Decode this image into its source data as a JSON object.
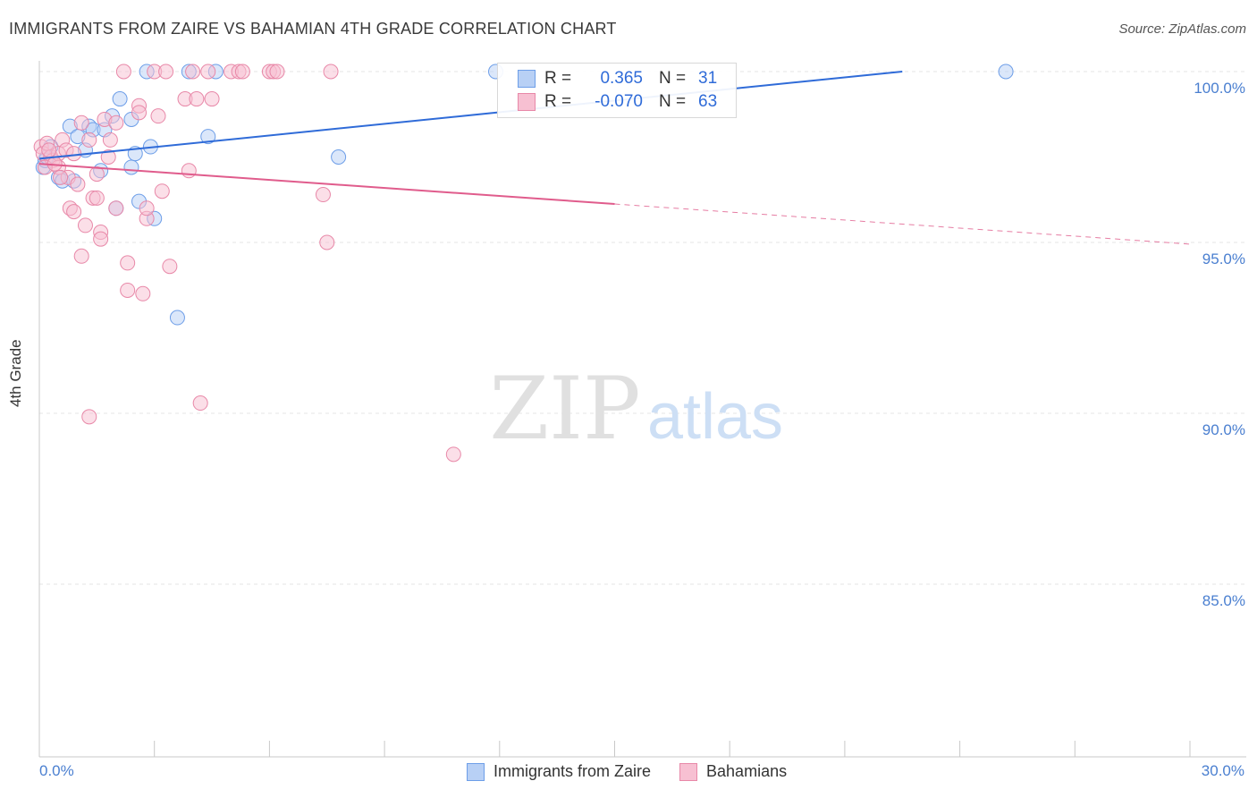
{
  "title": "IMMIGRANTS FROM ZAIRE VS BAHAMIAN 4TH GRADE CORRELATION CHART",
  "source": "Source: ZipAtlas.com",
  "watermark": {
    "zip": "ZIP",
    "atlas": "atlas"
  },
  "colors": {
    "blue": "#6d9ee8",
    "blue_fill": "#b8d0f5",
    "blue_line": "#2f6bd8",
    "pink": "#e888a8",
    "pink_fill": "#f7c0d2",
    "pink_line": "#e05c8c",
    "tick_text": "#4a7fd0",
    "grid": "#e5e5e5"
  },
  "legend": {
    "rows": [
      {
        "r_label": "R =",
        "r_value": "0.365",
        "n_label": "N =",
        "n_value": "31"
      },
      {
        "r_label": "R =",
        "r_value": "-0.070",
        "n_label": "N =",
        "n_value": "63"
      }
    ]
  },
  "chart_data": {
    "type": "scatter",
    "title": "IMMIGRANTS FROM ZAIRE VS BAHAMIAN 4TH GRADE CORRELATION CHART",
    "xlabel": "",
    "ylabel": "4th Grade",
    "xlim": [
      0,
      30
    ],
    "ylim": [
      80.5,
      100.5
    ],
    "x_tick_labels": [
      "0.0%",
      "30.0%"
    ],
    "y_ticks": [
      {
        "value": 100,
        "label": "100.0%"
      },
      {
        "value": 95,
        "label": "95.0%"
      },
      {
        "value": 90,
        "label": "90.0%"
      },
      {
        "value": 85,
        "label": "85.0%"
      }
    ],
    "series": [
      {
        "name": "Immigrants from Zaire",
        "color": "blue",
        "R": 0.365,
        "N": 31,
        "trend": {
          "x0": 0,
          "y0": 97.45,
          "x1": 22.5,
          "y1": 100.0,
          "solid_until": 22.5
        },
        "points": [
          [
            0.1,
            97.2
          ],
          [
            0.15,
            97.4
          ],
          [
            0.3,
            97.8
          ],
          [
            0.5,
            96.9
          ],
          [
            0.6,
            96.8
          ],
          [
            0.8,
            98.4
          ],
          [
            0.9,
            96.8
          ],
          [
            1.0,
            98.1
          ],
          [
            1.2,
            97.7
          ],
          [
            1.3,
            98.4
          ],
          [
            1.4,
            98.3
          ],
          [
            1.6,
            97.1
          ],
          [
            1.7,
            98.3
          ],
          [
            1.9,
            98.7
          ],
          [
            2.0,
            96.0
          ],
          [
            2.1,
            99.2
          ],
          [
            2.4,
            97.2
          ],
          [
            2.4,
            98.6
          ],
          [
            2.5,
            97.6
          ],
          [
            2.6,
            96.2
          ],
          [
            2.8,
            100.0
          ],
          [
            2.9,
            97.8
          ],
          [
            3.0,
            95.7
          ],
          [
            3.6,
            92.8
          ],
          [
            3.9,
            100.0
          ],
          [
            4.4,
            98.1
          ],
          [
            4.6,
            100.0
          ],
          [
            7.8,
            97.5
          ],
          [
            11.9,
            100.0
          ],
          [
            25.2,
            100.0
          ],
          [
            0.2,
            97.5
          ]
        ]
      },
      {
        "name": "Bahamians",
        "color": "pink",
        "R": -0.07,
        "N": 63,
        "trend": {
          "x0": 0,
          "y0": 97.3,
          "x1": 30,
          "y1": 94.95,
          "solid_until": 15.0
        },
        "points": [
          [
            0.05,
            97.8
          ],
          [
            0.1,
            97.6
          ],
          [
            0.2,
            97.9
          ],
          [
            0.3,
            97.5
          ],
          [
            0.35,
            97.4
          ],
          [
            0.5,
            97.6
          ],
          [
            0.5,
            97.2
          ],
          [
            0.6,
            98.0
          ],
          [
            0.7,
            97.7
          ],
          [
            0.75,
            96.9
          ],
          [
            0.8,
            96.0
          ],
          [
            0.9,
            95.9
          ],
          [
            0.9,
            97.6
          ],
          [
            1.0,
            96.7
          ],
          [
            1.1,
            94.6
          ],
          [
            1.1,
            98.5
          ],
          [
            1.2,
            95.5
          ],
          [
            1.3,
            98.0
          ],
          [
            1.3,
            89.9
          ],
          [
            1.4,
            96.3
          ],
          [
            1.5,
            96.3
          ],
          [
            1.5,
            97.0
          ],
          [
            1.6,
            95.3
          ],
          [
            1.6,
            95.1
          ],
          [
            1.7,
            98.6
          ],
          [
            1.8,
            97.5
          ],
          [
            1.85,
            98.0
          ],
          [
            2.0,
            98.5
          ],
          [
            2.0,
            96.0
          ],
          [
            2.2,
            100.0
          ],
          [
            2.3,
            94.4
          ],
          [
            2.3,
            93.6
          ],
          [
            2.6,
            99.0
          ],
          [
            2.6,
            98.8
          ],
          [
            2.7,
            93.5
          ],
          [
            2.8,
            95.7
          ],
          [
            2.8,
            96.0
          ],
          [
            3.0,
            100.0
          ],
          [
            3.1,
            98.7
          ],
          [
            3.2,
            96.5
          ],
          [
            3.3,
            100.0
          ],
          [
            3.4,
            94.3
          ],
          [
            3.8,
            99.2
          ],
          [
            3.9,
            97.1
          ],
          [
            4.0,
            100.0
          ],
          [
            4.1,
            99.2
          ],
          [
            4.2,
            90.3
          ],
          [
            4.4,
            100.0
          ],
          [
            4.5,
            99.2
          ],
          [
            5.0,
            100.0
          ],
          [
            5.2,
            100.0
          ],
          [
            5.3,
            100.0
          ],
          [
            6.0,
            100.0
          ],
          [
            6.1,
            100.0
          ],
          [
            6.2,
            100.0
          ],
          [
            7.4,
            96.4
          ],
          [
            7.5,
            95.0
          ],
          [
            7.6,
            100.0
          ],
          [
            10.8,
            88.8
          ],
          [
            0.15,
            97.2
          ],
          [
            0.25,
            97.7
          ],
          [
            0.4,
            97.3
          ],
          [
            0.55,
            96.9
          ]
        ]
      }
    ]
  },
  "legend_bottom": [
    {
      "label": "Immigrants from Zaire",
      "color": "blue"
    },
    {
      "label": "Bahamians",
      "color": "pink"
    }
  ]
}
